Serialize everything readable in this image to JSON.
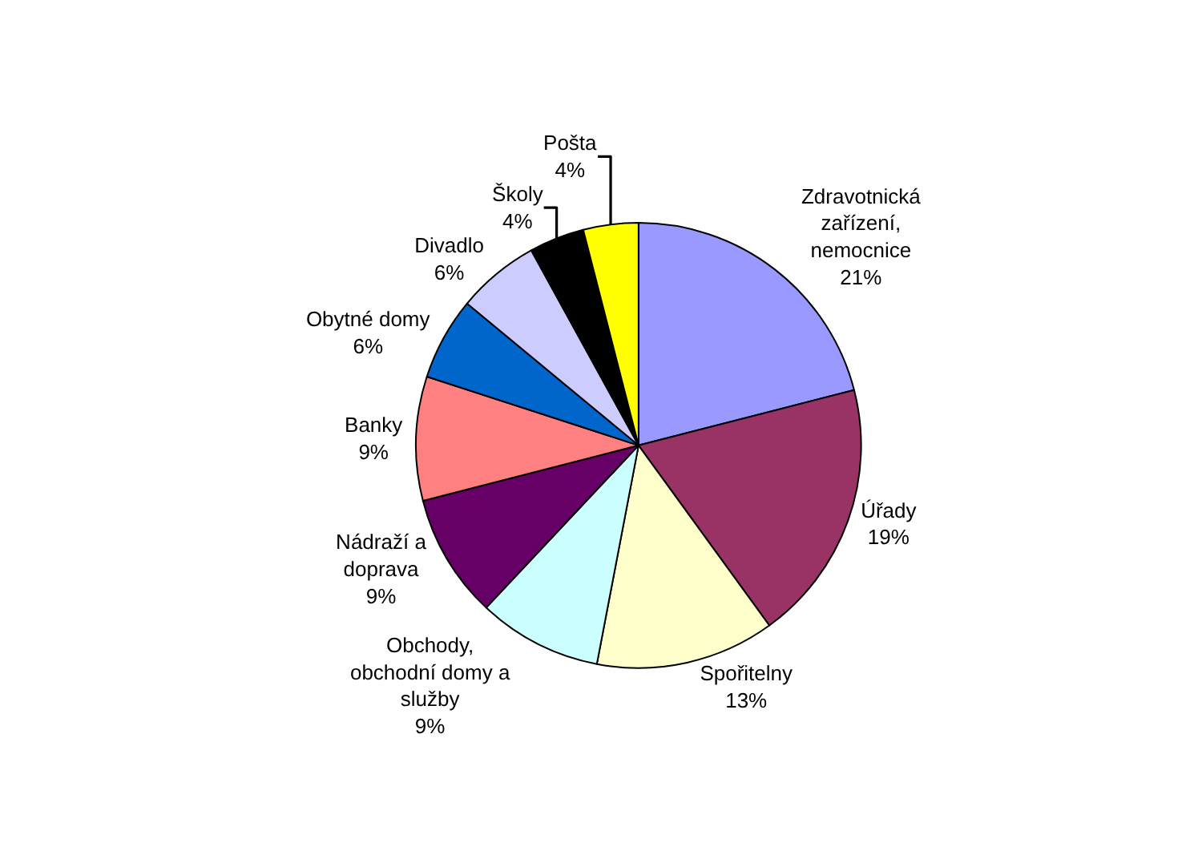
{
  "chart_data": {
    "type": "pie",
    "categories": [
      "Zdravotnická zařízení, nemocnice",
      "Úřady",
      "Spořitelny",
      "Obchody, obchodní domy a služby",
      "Nádraží a doprava",
      "Banky",
      "Obytné domy",
      "Divadlo",
      "Školy",
      "Pošta"
    ],
    "values": [
      21,
      19,
      13,
      9,
      9,
      9,
      6,
      6,
      4,
      4
    ],
    "value_labels": [
      "21%",
      "19%",
      "13%",
      "9%",
      "9%",
      "9%",
      "6%",
      "6%",
      "4%",
      "4%"
    ],
    "colors": [
      "#9999ff",
      "#993366",
      "#ffffcc",
      "#ccffff",
      "#660066",
      "#ff8080",
      "#0066cc",
      "#ccccff",
      "#000000",
      "#ffff00"
    ],
    "legend": false
  }
}
